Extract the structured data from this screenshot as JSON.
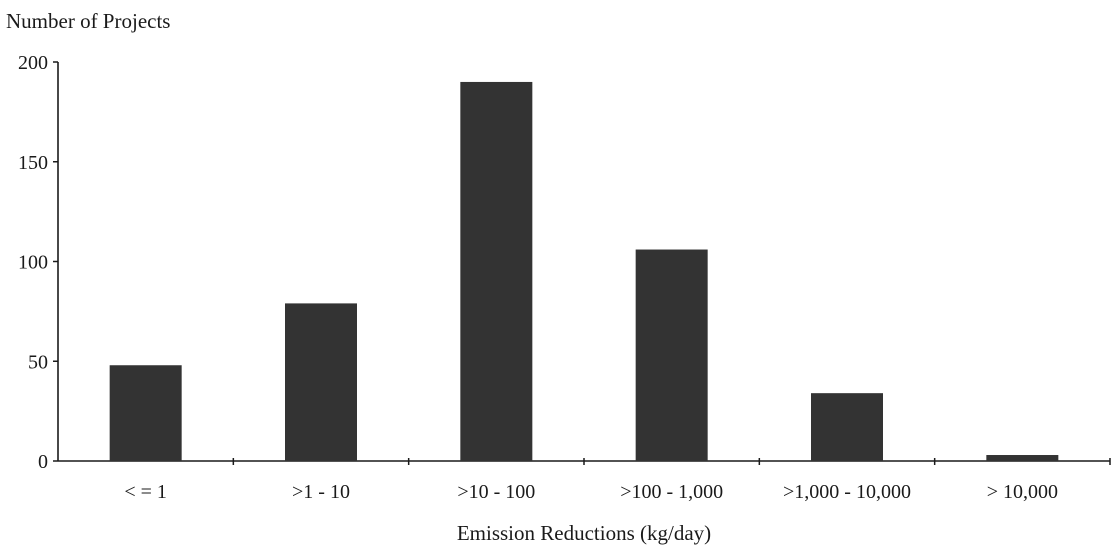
{
  "chart_data": {
    "type": "bar",
    "ylabel": "Number of Projects",
    "xlabel": "Emission Reductions (kg/day)",
    "categories": [
      "< = 1",
      ">1 - 10",
      ">10 - 100",
      ">100 - 1,000",
      ">1,000 - 10,000",
      "> 10,000"
    ],
    "values": [
      48,
      79,
      190,
      106,
      34,
      3
    ],
    "ylim": [
      0,
      200
    ],
    "yticks": [
      0,
      50,
      100,
      150,
      200
    ],
    "grid": false,
    "legend": "none",
    "colors": {
      "bar": "#333333",
      "axis": "#1a1a1a"
    }
  }
}
